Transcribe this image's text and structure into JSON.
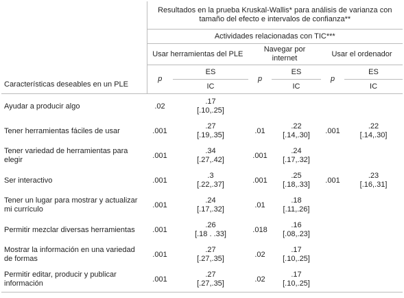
{
  "header": {
    "title": "Resultados en la prueba Kruskal-Wallis* para análisis de varianza con tamaño del efecto e intervalos de confianza**",
    "subtitle": "Actividades relacionadas con TIC***",
    "groups": [
      "Usar herramientas del PLE",
      "Navegar por internet",
      "Usar el ordenador"
    ],
    "p": "p",
    "es": "ES",
    "ic": "IC",
    "row_label": "Características deseables en un PLE"
  },
  "table": {
    "rows": [
      {
        "label": "Ayudar a producir algo",
        "cells": [
          {
            "p": ".02",
            "es": ".17",
            "ic": "[.10,.25]"
          },
          null,
          null
        ]
      },
      {
        "label": "Tener herramientas fáciles de usar",
        "cells": [
          {
            "p": ".001",
            "es": ".27",
            "ic": "[.19,.35]"
          },
          {
            "p": ".01",
            "es": ".22",
            "ic": "[.14,.30]"
          },
          {
            "p": ".001",
            "es": ".22",
            "ic": "[.14,.30]"
          }
        ]
      },
      {
        "label": "Tener variedad de herramientas para elegir",
        "cells": [
          {
            "p": ".001",
            "es": ".34",
            "ic": "[.27,.42]"
          },
          {
            "p": ".001",
            "es": ".24",
            "ic": "[.17,.32]"
          },
          null
        ]
      },
      {
        "label": "Ser interactivo",
        "cells": [
          {
            "p": ".001",
            "es": ".3",
            "ic": "[.22,.37]"
          },
          {
            "p": ".001",
            "es": ".25",
            "ic": "[.18,.33]"
          },
          {
            "p": ".001",
            "es": ".23",
            "ic": "[.16,.31]"
          }
        ]
      },
      {
        "label": "Tener un lugar para mostrar y actualizar mi currículo",
        "cells": [
          {
            "p": ".001",
            "es": ".24",
            "ic": "[.17,.32]"
          },
          {
            "p": ".01",
            "es": ".18",
            "ic": "[.11,.26]"
          },
          null
        ]
      },
      {
        "label": "Permitir mezclar diversas herramientas",
        "cells": [
          {
            "p": ".001",
            "es": ".26",
            "ic": "[.18 . .33]"
          },
          {
            "p": ".018",
            "es": ".16",
            "ic": "[.08,.23]"
          },
          null
        ]
      },
      {
        "label": "Mostrar la información en una variedad de formas",
        "cells": [
          {
            "p": ".001",
            "es": ".27",
            "ic": "[.27,.35]"
          },
          {
            "p": ".02",
            "es": ".17",
            "ic": "[.10,.25]"
          },
          null
        ]
      },
      {
        "label": "Permitir editar, producir y publicar información",
        "cells": [
          {
            "p": ".001",
            "es": ".27",
            "ic": "[.27,.35]"
          },
          {
            "p": ".02",
            "es": ".17",
            "ic": "[.10,.25]"
          },
          null
        ]
      }
    ]
  }
}
